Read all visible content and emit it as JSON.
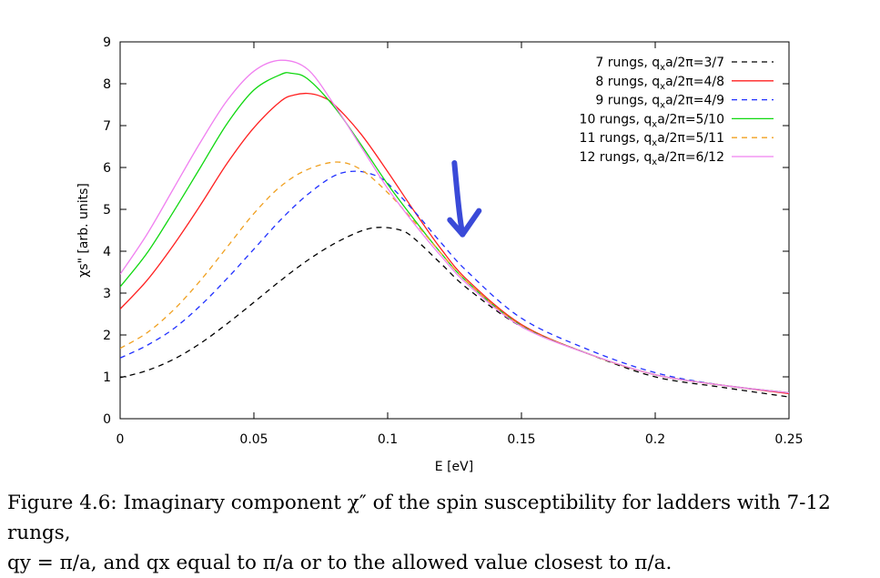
{
  "chart_data": {
    "type": "line",
    "xlabel": "E [eV]",
    "ylabel": "χs\" [arb. units]",
    "xlim": [
      0,
      0.25
    ],
    "ylim": [
      0,
      9
    ],
    "xticks": [
      "0",
      "0.05",
      "0.1",
      "0.15",
      "0.2",
      "0.25"
    ],
    "yticks": [
      "0",
      "1",
      "2",
      "3",
      "4",
      "5",
      "6",
      "7",
      "8",
      "9"
    ],
    "grid": false,
    "legend_position": "top-right",
    "series": [
      {
        "name": "7 rungs, qxa/2π=3/7",
        "legend_label": "7 rungs, q",
        "legend_sub": "x",
        "legend_suffix": "a/2π=3/7",
        "color": "#000000",
        "dash": "dashed",
        "x": [
          0,
          0.01,
          0.02,
          0.03,
          0.04,
          0.05,
          0.06,
          0.07,
          0.08,
          0.09,
          0.097,
          0.105,
          0.11,
          0.12,
          0.13,
          0.15,
          0.175,
          0.2,
          0.225,
          0.25
        ],
        "y": [
          0.98,
          1.15,
          1.42,
          1.8,
          2.27,
          2.78,
          3.3,
          3.78,
          4.18,
          4.48,
          4.57,
          4.5,
          4.3,
          3.7,
          3.1,
          2.2,
          1.55,
          1.0,
          0.75,
          0.52
        ]
      },
      {
        "name": "8 rungs, qxa/2π=4/8",
        "legend_label": "8 rungs, q",
        "legend_sub": "x",
        "legend_suffix": "a/2π=4/8",
        "color": "#ff2020",
        "dash": "solid",
        "x": [
          0,
          0.01,
          0.02,
          0.03,
          0.04,
          0.05,
          0.06,
          0.065,
          0.07,
          0.075,
          0.08,
          0.09,
          0.1,
          0.11,
          0.12,
          0.13,
          0.15,
          0.175,
          0.2,
          0.225,
          0.25
        ],
        "y": [
          2.62,
          3.3,
          4.15,
          5.1,
          6.1,
          6.95,
          7.58,
          7.73,
          7.77,
          7.7,
          7.5,
          6.8,
          5.9,
          4.95,
          4.05,
          3.3,
          2.25,
          1.55,
          1.05,
          0.8,
          0.6
        ]
      },
      {
        "name": "9 rungs, qxa/2π=4/9",
        "legend_label": "9 rungs, q",
        "legend_sub": "x",
        "legend_suffix": "a/2π=4/9",
        "color": "#2030ff",
        "dash": "dashed",
        "x": [
          0,
          0.01,
          0.02,
          0.03,
          0.04,
          0.05,
          0.06,
          0.07,
          0.08,
          0.088,
          0.095,
          0.1,
          0.11,
          0.12,
          0.13,
          0.15,
          0.175,
          0.2,
          0.225,
          0.25
        ],
        "y": [
          1.45,
          1.75,
          2.15,
          2.7,
          3.35,
          4.05,
          4.75,
          5.35,
          5.8,
          5.91,
          5.82,
          5.62,
          4.95,
          4.2,
          3.5,
          2.4,
          1.65,
          1.1,
          0.8,
          0.62
        ]
      },
      {
        "name": "10 rungs, qxa/2π=5/10",
        "legend_label": "10 rungs, q",
        "legend_sub": "x",
        "legend_suffix": "a/2π=5/10",
        "color": "#10d810",
        "dash": "solid",
        "x": [
          0,
          0.01,
          0.02,
          0.03,
          0.04,
          0.05,
          0.06,
          0.064,
          0.07,
          0.08,
          0.09,
          0.1,
          0.11,
          0.12,
          0.13,
          0.15,
          0.175,
          0.2,
          0.225,
          0.25
        ],
        "y": [
          3.15,
          3.95,
          4.95,
          6.0,
          7.05,
          7.85,
          8.22,
          8.25,
          8.12,
          7.45,
          6.55,
          5.6,
          4.75,
          3.95,
          3.25,
          2.22,
          1.55,
          1.05,
          0.8,
          0.62
        ]
      },
      {
        "name": "11 rungs, qxa/2π=5/11",
        "legend_label": "11 rungs, q",
        "legend_sub": "x",
        "legend_suffix": "a/2π=5/11",
        "color": "#f0a020",
        "dash": "dashed",
        "x": [
          0,
          0.01,
          0.02,
          0.03,
          0.04,
          0.05,
          0.06,
          0.07,
          0.081,
          0.09,
          0.1,
          0.11,
          0.12,
          0.13,
          0.15,
          0.175,
          0.2,
          0.225,
          0.25
        ],
        "y": [
          1.68,
          2.05,
          2.6,
          3.3,
          4.1,
          4.9,
          5.55,
          5.95,
          6.13,
          5.95,
          5.4,
          4.7,
          3.95,
          3.25,
          2.22,
          1.55,
          1.05,
          0.8,
          0.62
        ]
      },
      {
        "name": "12 rungs, qxa/2π=6/12",
        "legend_label": "12 rungs, q",
        "legend_sub": "x",
        "legend_suffix": "a/2π=6/12",
        "color": "#f080f0",
        "dash": "solid",
        "x": [
          0,
          0.01,
          0.02,
          0.03,
          0.04,
          0.05,
          0.06,
          0.07,
          0.08,
          0.09,
          0.1,
          0.11,
          0.12,
          0.13,
          0.15,
          0.175,
          0.2,
          0.225,
          0.25
        ],
        "y": [
          3.45,
          4.4,
          5.5,
          6.6,
          7.6,
          8.3,
          8.56,
          8.35,
          7.5,
          6.5,
          5.5,
          4.65,
          3.88,
          3.2,
          2.2,
          1.55,
          1.05,
          0.8,
          0.62
        ]
      }
    ],
    "annotations": [
      {
        "type": "arrow",
        "description": "hand-drawn blue arrow pointing down",
        "color": "#3a4ad8",
        "x": 0.128,
        "y_from": 6.0,
        "y_to": 4.4
      }
    ]
  },
  "caption": {
    "line1": "Figure 4.6: Imaginary component χ″ of the spin susceptibility for ladders with 7-12 rungs,",
    "line2": "qy = π/a, and qx equal to π/a or to the allowed value closest to π/a."
  }
}
